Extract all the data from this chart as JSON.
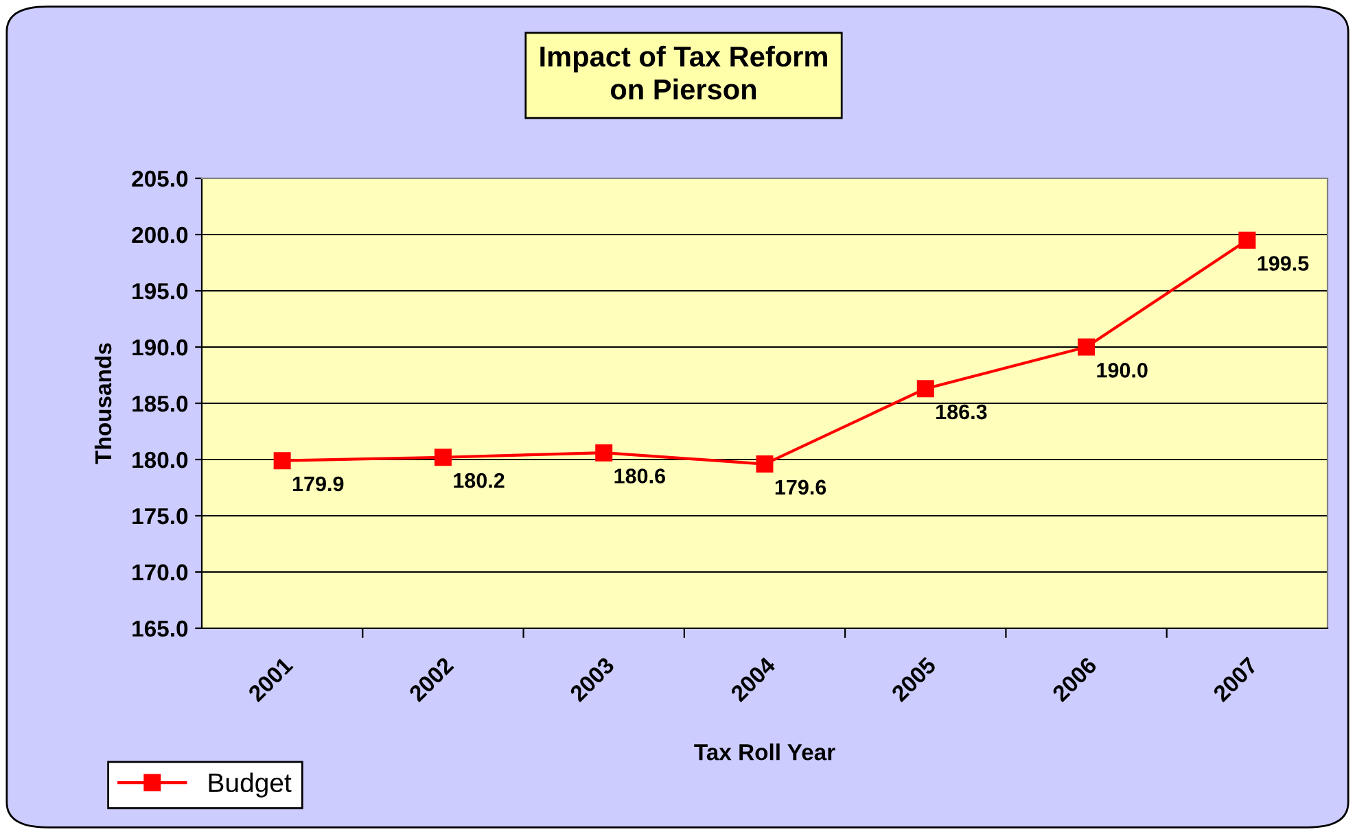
{
  "chart_data": {
    "type": "line",
    "title": "Impact of Tax Reform\non Pierson",
    "xlabel": "Tax Roll Year",
    "ylabel": "Thousands",
    "categories": [
      "2001",
      "2002",
      "2003",
      "2004",
      "2005",
      "2006",
      "2007"
    ],
    "series": [
      {
        "name": "Budget",
        "color": "#ff0000",
        "values": [
          179.9,
          180.2,
          180.6,
          179.6,
          186.3,
          190.0,
          199.5
        ],
        "value_labels": [
          "179.9",
          "180.2",
          "180.6",
          "179.6",
          "186.3",
          "190.0",
          "199.5"
        ]
      }
    ],
    "ylim": [
      165.0,
      205.0
    ],
    "yticks": [
      {
        "value": 165,
        "label": "165.0"
      },
      {
        "value": 170,
        "label": "170.0"
      },
      {
        "value": 175,
        "label": "175.0"
      },
      {
        "value": 180,
        "label": "180.0"
      },
      {
        "value": 185,
        "label": "185.0"
      },
      {
        "value": 190,
        "label": "190.0"
      },
      {
        "value": 195,
        "label": "195.0"
      },
      {
        "value": 200,
        "label": "200.0"
      },
      {
        "value": 205,
        "label": "205.0"
      }
    ],
    "grid": "y",
    "legend": "bottom left",
    "marker": "square",
    "line_style": "solid"
  }
}
